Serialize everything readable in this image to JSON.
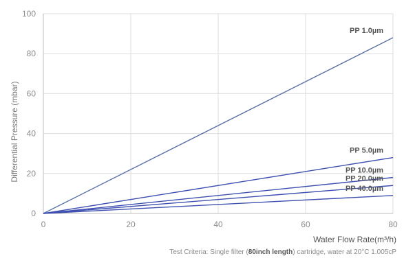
{
  "chart_data": {
    "type": "line",
    "xlabel": "Water Flow Rate(m³/h)",
    "ylabel": "Differential Pressure (mbar)",
    "xlim": [
      0,
      80
    ],
    "ylim": [
      0,
      100
    ],
    "xticks": [
      "0",
      "20",
      "40",
      "60",
      "80"
    ],
    "yticks": [
      "0",
      "20",
      "40",
      "60",
      "80",
      "100"
    ],
    "grid": true,
    "series": [
      {
        "name": "PP 1.0µm",
        "x": [
          0,
          80
        ],
        "y": [
          0,
          88
        ],
        "color": "#5a72a8"
      },
      {
        "name": "PP 5.0µm",
        "x": [
          0,
          80
        ],
        "y": [
          0,
          28
        ],
        "color": "#3d4fb0"
      },
      {
        "name": "PP 10.0µm",
        "x": [
          0,
          80
        ],
        "y": [
          0,
          18
        ],
        "color": "#3d4fb0"
      },
      {
        "name": "PP 20.0µm",
        "x": [
          0,
          80
        ],
        "y": [
          0,
          14
        ],
        "color": "#3d4fb0"
      },
      {
        "name": "PP 40.0µm",
        "x": [
          0,
          80
        ],
        "y": [
          0,
          9
        ],
        "color": "#3d4fb0"
      }
    ]
  },
  "caption": {
    "prefix": "Test Criteria: Single filter (",
    "bold": "80inch length",
    "suffix": ") cartridge, water at 20°C 1.005cP"
  }
}
